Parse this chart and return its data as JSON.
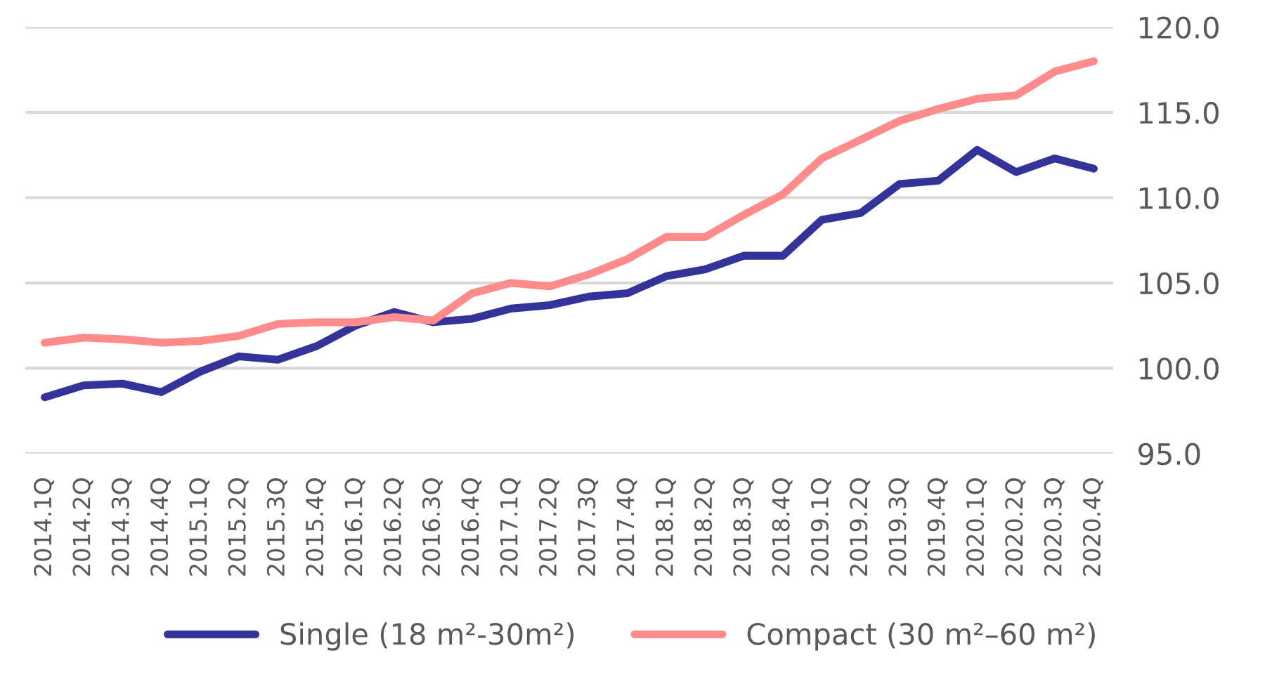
{
  "chart_data": {
    "type": "line",
    "categories": [
      "2014.1Q",
      "2014.2Q",
      "2014.3Q",
      "2014.4Q",
      "2015.1Q",
      "2015.2Q",
      "2015.3Q",
      "2015.4Q",
      "2016.1Q",
      "2016.2Q",
      "2016.3Q",
      "2016.4Q",
      "2017.1Q",
      "2017.2Q",
      "2017.3Q",
      "2017.4Q",
      "2018.1Q",
      "2018.2Q",
      "2018.3Q",
      "2018.4Q",
      "2019.1Q",
      "2019.2Q",
      "2019.3Q",
      "2019.4Q",
      "2020.1Q",
      "2020.2Q",
      "2020.3Q",
      "2020.4Q"
    ],
    "series": [
      {
        "name": "Single (18 m²-30m²)",
        "color": "#333399",
        "values": [
          98.3,
          99.0,
          99.1,
          98.6,
          99.8,
          100.7,
          100.5,
          101.3,
          102.5,
          103.3,
          102.7,
          102.9,
          103.5,
          103.7,
          104.2,
          104.4,
          105.4,
          105.8,
          106.6,
          106.6,
          108.7,
          109.1,
          110.8,
          111.0,
          112.8,
          111.5,
          112.3,
          111.7
        ]
      },
      {
        "name": "Compact (30 m²–60 m²)",
        "color": "#ff8b8b",
        "values": [
          101.5,
          101.8,
          101.7,
          101.5,
          101.6,
          101.9,
          102.6,
          102.7,
          102.7,
          103.0,
          102.8,
          104.4,
          105.0,
          104.8,
          105.5,
          106.4,
          107.7,
          107.7,
          109.0,
          110.2,
          112.3,
          113.4,
          114.5,
          115.2,
          115.8,
          116.0,
          117.4,
          118.0
        ]
      }
    ],
    "ylim": [
      95,
      120
    ],
    "yticks": [
      {
        "value": 95,
        "label": "95.0"
      },
      {
        "value": 100,
        "label": "100.0"
      },
      {
        "value": 105,
        "label": "105.0"
      },
      {
        "value": 110,
        "label": "110.0"
      },
      {
        "value": 115,
        "label": "115.0"
      },
      {
        "value": 120,
        "label": "120.0"
      }
    ],
    "grid": "y",
    "legend": "bottom",
    "line_style": "solid",
    "marker": "none"
  }
}
